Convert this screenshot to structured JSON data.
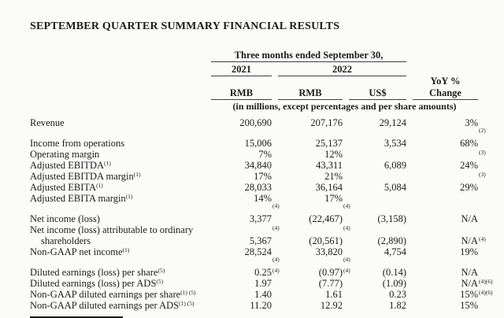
{
  "page": {
    "title": "SEPTEMBER QUARTER SUMMARY FINANCIAL RESULTS"
  },
  "colors": {
    "background": "#fbfbfa",
    "text": "#1c1c1c",
    "rule": "#3f3f3f"
  },
  "table": {
    "header": {
      "period_header": "Three months ended September 30,",
      "year_left": "2021",
      "year_right": "2022",
      "yoy_line1": "YoY %",
      "yoy_line2": "Change",
      "currency_cols": [
        "RMB",
        "RMB",
        "US$"
      ],
      "units_note": "(in millions, except percentages and per share amounts)"
    },
    "rows": [
      {
        "type": "data",
        "label": "Revenue",
        "cells": [
          {
            "v": "200,690"
          },
          {
            "v": "207,176"
          },
          {
            "v": "29,124"
          },
          {
            "v": "3%"
          }
        ]
      },
      {
        "type": "spacer"
      },
      {
        "type": "data",
        "label": "Income from operations",
        "cells": [
          {
            "v": "15,006"
          },
          {
            "v": "25,137"
          },
          {
            "v": "3,534"
          },
          {
            "v": "68%",
            "sup": "(2)"
          }
        ]
      },
      {
        "type": "data",
        "label": "Operating margin",
        "cells": [
          {
            "v": "7%"
          },
          {
            "v": "12%"
          },
          {
            "v": ""
          },
          {
            "v": ""
          }
        ]
      },
      {
        "type": "data",
        "label": "Adjusted EBITDA",
        "label_sup": "(1)",
        "cells": [
          {
            "v": "34,840"
          },
          {
            "v": "43,311"
          },
          {
            "v": "6,089"
          },
          {
            "v": "24%",
            "sup": "(3)"
          }
        ]
      },
      {
        "type": "data",
        "label": "Adjusted EBITDA margin",
        "label_sup": "(1)",
        "cells": [
          {
            "v": "17%"
          },
          {
            "v": "21%"
          },
          {
            "v": ""
          },
          {
            "v": ""
          }
        ]
      },
      {
        "type": "data",
        "label": "Adjusted EBITA",
        "label_sup": "(1)",
        "cells": [
          {
            "v": "28,033"
          },
          {
            "v": "36,164"
          },
          {
            "v": "5,084"
          },
          {
            "v": "29%",
            "sup": "(3)"
          }
        ]
      },
      {
        "type": "data",
        "label": "Adjusted EBITA margin",
        "label_sup": "(1)",
        "cells": [
          {
            "v": "14%"
          },
          {
            "v": "17%"
          },
          {
            "v": ""
          },
          {
            "v": ""
          }
        ]
      },
      {
        "type": "spacer"
      },
      {
        "type": "data",
        "label": "Net income (loss)",
        "cells": [
          {
            "v": "3,377",
            "sup": "(4)"
          },
          {
            "v": "(22,467)",
            "sup": "(4)"
          },
          {
            "v": "(3,158)"
          },
          {
            "v": "N/A"
          }
        ]
      },
      {
        "type": "data",
        "label": "Net income (loss) attributable to ordinary",
        "label2": "shareholders",
        "cells": [
          {
            "v": "5,367",
            "sup": "(4)"
          },
          {
            "v": "(20,561)",
            "sup": "(4)"
          },
          {
            "v": "(2,890)"
          },
          {
            "v": "N/A"
          }
        ]
      },
      {
        "type": "data",
        "label": "Non-GAAP net income",
        "label_sup": "(1)",
        "cells": [
          {
            "v": "28,524"
          },
          {
            "v": "33,820"
          },
          {
            "v": "4,754"
          },
          {
            "v": "19%",
            "sup": "(4)"
          }
        ]
      },
      {
        "type": "spacer"
      },
      {
        "type": "data",
        "label": "Diluted earnings (loss) per share",
        "label_sup": "(5)",
        "cells": [
          {
            "v": "0.25",
            "sup": "(4)"
          },
          {
            "v": "(0.97)",
            "sup": "(4)"
          },
          {
            "v": "(0.14)"
          },
          {
            "v": "N/A"
          }
        ]
      },
      {
        "type": "data",
        "label": "Diluted earnings (loss) per ADS",
        "label_sup": "(5)",
        "cells": [
          {
            "v": "1.97",
            "sup": "(4)"
          },
          {
            "v": "(7.77)",
            "sup": "(4)"
          },
          {
            "v": "(1.09)"
          },
          {
            "v": "N/A"
          }
        ]
      },
      {
        "type": "data",
        "label": "Non-GAAP diluted earnings per share",
        "label_sup": "(1) (5)",
        "cells": [
          {
            "v": "1.40"
          },
          {
            "v": "1.61"
          },
          {
            "v": "0.23"
          },
          {
            "v": "15%",
            "sup": "(4)(6)"
          }
        ]
      },
      {
        "type": "data",
        "label": "Non-GAAP diluted earnings per ADS",
        "label_sup": "(1) (5)",
        "cells": [
          {
            "v": "11.20"
          },
          {
            "v": "12.92"
          },
          {
            "v": "1.82"
          },
          {
            "v": "15%",
            "sup": "(4)(6)"
          }
        ]
      }
    ]
  }
}
